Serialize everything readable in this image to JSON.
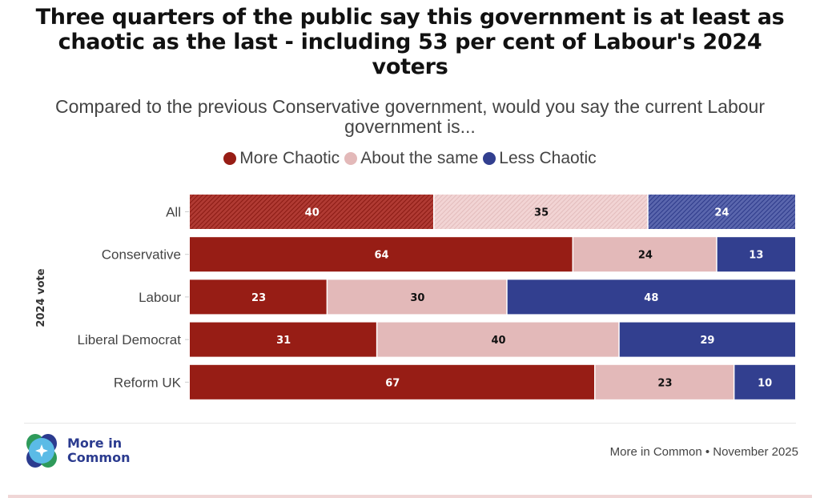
{
  "header": {
    "title": "Three quarters of the public say this government is at least as chaotic as the last - including 53 per cent of Labour's 2024 voters",
    "subtitle": "Compared to the previous Conservative government, would you say the current Labour government is..."
  },
  "footer": {
    "logo_line1": "More in",
    "logo_line2": "Common",
    "source": "More in Common • November 2025"
  },
  "colors": {
    "more_chaotic": "#971d15",
    "about_same": "#e3b9b9",
    "less_chaotic": "#323f8f"
  },
  "chart_data": {
    "type": "bar",
    "orientation": "horizontal",
    "stacked": true,
    "title": "Three quarters of the public say this government is at least as chaotic as the last - including 53 per cent of Labour's 2024 voters",
    "subtitle": "Compared to the previous Conservative government, would you say the current Labour government is...",
    "ylabel": "2024 vote",
    "xlabel": "",
    "xlim": [
      0,
      100
    ],
    "grid": false,
    "legend_position": "top-center",
    "categories": [
      "All",
      "Conservative",
      "Labour",
      "Liberal Democrat",
      "Reform UK"
    ],
    "hatched_categories": [
      "All"
    ],
    "series": [
      {
        "name": "More Chaotic",
        "color": "#971d15",
        "label_color": "#ffffff",
        "values": [
          40,
          64,
          23,
          31,
          67
        ]
      },
      {
        "name": "About the same",
        "color": "#e3b9b9",
        "label_color": "#111111",
        "values": [
          35,
          24,
          30,
          40,
          23
        ]
      },
      {
        "name": "Less Chaotic",
        "color": "#323f8f",
        "label_color": "#ffffff",
        "values": [
          24,
          13,
          48,
          29,
          10
        ]
      }
    ]
  }
}
